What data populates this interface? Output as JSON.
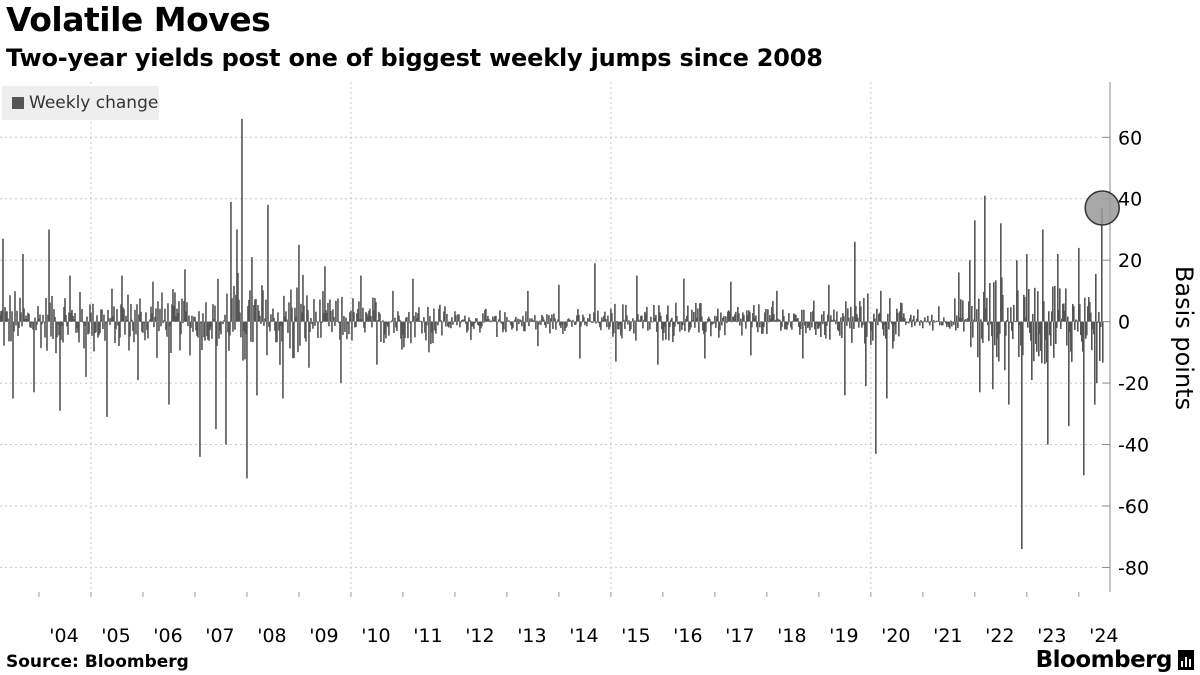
{
  "title": "Volatile Moves",
  "subtitle": "Two-year yields post one of biggest weekly jumps since 2008",
  "legend": {
    "label": "Weekly change",
    "color": "#555555"
  },
  "source": "Source: Bloomberg",
  "brand": "Bloomberg",
  "chart_data": {
    "type": "bar",
    "title": "Volatile Moves",
    "subtitle": "Two-year yields post one of biggest weekly jumps since 2008",
    "xlabel": "",
    "ylabel": "Basis points",
    "ylim": [
      -88,
      78
    ],
    "yticks": [
      60,
      40,
      20,
      0,
      -20,
      -40,
      -60,
      -80
    ],
    "ytick_labels": [
      "60",
      "40",
      "20",
      "0",
      "-20",
      "-40",
      "-60",
      "-80"
    ],
    "xlim": [
      2003.25,
      2024.6
    ],
    "xticks": [
      2004,
      2005,
      2006,
      2007,
      2008,
      2009,
      2010,
      2011,
      2012,
      2013,
      2014,
      2015,
      2016,
      2017,
      2018,
      2019,
      2020,
      2021,
      2022,
      2023,
      2024
    ],
    "xtick_labels": [
      "'04",
      "'05",
      "'06",
      "'07",
      "'08",
      "'09",
      "'10",
      "'11",
      "'12",
      "'13",
      "'14",
      "'15",
      "'16",
      "'17",
      "'18",
      "'19",
      "'20",
      "'21",
      "'22",
      "'23",
      "'24"
    ],
    "series": [
      {
        "name": "Weekly change",
        "color": "#555555",
        "frequency": "weekly",
        "x": [
          2003.3,
          2003.5,
          2003.7,
          2003.9,
          2004.2,
          2004.4,
          2004.6,
          2004.9,
          2005.3,
          2005.6,
          2005.9,
          2006.2,
          2006.5,
          2006.8,
          2007.1,
          2007.4,
          2007.6,
          2007.7,
          2007.8,
          2007.9,
          2008.0,
          2008.1,
          2008.2,
          2008.4,
          2008.7,
          2009.0,
          2009.2,
          2009.5,
          2009.8,
          2010.2,
          2010.5,
          2010.8,
          2011.2,
          2011.5,
          2011.8,
          2012.3,
          2012.8,
          2013.4,
          2013.6,
          2014.0,
          2014.4,
          2014.7,
          2015.1,
          2015.5,
          2015.9,
          2016.4,
          2016.8,
          2017.3,
          2017.7,
          2018.2,
          2018.7,
          2019.2,
          2019.5,
          2019.7,
          2019.9,
          2020.1,
          2020.2,
          2020.3,
          2020.6,
          2020.9,
          2021.3,
          2021.7,
          2021.9,
          2022.0,
          2022.1,
          2022.2,
          2022.35,
          2022.5,
          2022.65,
          2022.8,
          2022.9,
          2023.0,
          2023.1,
          2023.3,
          2023.4,
          2023.6,
          2023.8,
          2024.0,
          2024.1,
          2024.2,
          2024.3,
          2024.35,
          2024.45
        ],
        "values": [
          27,
          -25,
          22,
          -23,
          30,
          -29,
          15,
          -18,
          -31,
          15,
          -19,
          13,
          -27,
          17,
          -44,
          -35,
          -40,
          39,
          30,
          66,
          -51,
          21,
          -24,
          38,
          -25,
          25,
          -15,
          18,
          -20,
          15,
          -14,
          10,
          14,
          -10,
          5,
          -6,
          -5,
          10,
          -8,
          12,
          -12,
          19,
          -13,
          15,
          -14,
          14,
          -12,
          13,
          -11,
          10,
          -12,
          12,
          -24,
          26,
          -21,
          -43,
          10,
          -25,
          6,
          4,
          5,
          16,
          20,
          33,
          -23,
          41,
          -22,
          32,
          -27,
          20,
          -74,
          22,
          -19,
          30,
          -40,
          22,
          -34,
          24,
          -50,
          8,
          -27,
          -20,
          37
        ]
      }
    ],
    "highlight": {
      "x": 2024.45,
      "value": 37
    }
  }
}
